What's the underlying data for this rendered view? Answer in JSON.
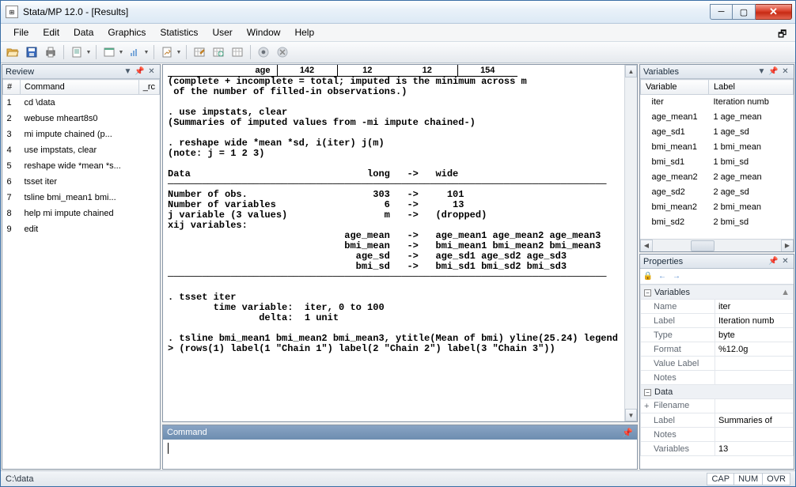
{
  "window": {
    "title": "Stata/MP 12.0 - [Results]"
  },
  "menu": [
    "File",
    "Edit",
    "Data",
    "Graphics",
    "Statistics",
    "User",
    "Window",
    "Help"
  ],
  "review": {
    "title": "Review",
    "cols": {
      "num": "#",
      "cmd": "Command",
      "rc": "_rc"
    },
    "rows": [
      {
        "n": "1",
        "cmd": "cd \\data"
      },
      {
        "n": "2",
        "cmd": "webuse mheart8s0"
      },
      {
        "n": "3",
        "cmd": "mi impute chained (p..."
      },
      {
        "n": "4",
        "cmd": "use impstats, clear"
      },
      {
        "n": "5",
        "cmd": "reshape wide *mean *s..."
      },
      {
        "n": "6",
        "cmd": "tsset iter"
      },
      {
        "n": "7",
        "cmd": "tsline bmi_mean1 bmi..."
      },
      {
        "n": "8",
        "cmd": "help mi impute chained"
      },
      {
        "n": "9",
        "cmd": "edit"
      }
    ]
  },
  "results": {
    "header": {
      "var": "age",
      "c1": "142",
      "c2": "12",
      "c3": "12",
      "c4": "154"
    },
    "body": "(complete + incomplete = total; imputed is the minimum across m\n of the number of filled-in observations.)\n\n. use impstats, clear\n(Summaries of imputed values from -mi impute chained-)\n\n. reshape wide *mean *sd, i(iter) j(m)\n(note: j = 1 2 3)\n\nData                               long   ->   wide\n─────────────────────────────────────────────────────────────────────────────\nNumber of obs.                      303   ->     101\nNumber of variables                   6   ->      13\nj variable (3 values)                 m   ->   (dropped)\nxij variables:\n                               age_mean   ->   age_mean1 age_mean2 age_mean3\n                               bmi_mean   ->   bmi_mean1 bmi_mean2 bmi_mean3\n                                 age_sd   ->   age_sd1 age_sd2 age_sd3\n                                 bmi_sd   ->   bmi_sd1 bmi_sd2 bmi_sd3\n─────────────────────────────────────────────────────────────────────────────\n\n. tsset iter\n        time variable:  iter, 0 to 100\n                delta:  1 unit\n\n. tsline bmi_mean1 bmi_mean2 bmi_mean3, ytitle(Mean of bmi) yline(25.24) legend\n> (rows(1) label(1 \"Chain 1\") label(2 \"Chain 2\") label(3 \"Chain 3\"))\n\n"
  },
  "command": {
    "title": "Command"
  },
  "variables": {
    "title": "Variables",
    "cols": {
      "var": "Variable",
      "label": "Label"
    },
    "rows": [
      {
        "v": "iter",
        "l": "Iteration numb"
      },
      {
        "v": "age_mean1",
        "l": "1 age_mean"
      },
      {
        "v": "age_sd1",
        "l": "1 age_sd"
      },
      {
        "v": "bmi_mean1",
        "l": "1 bmi_mean"
      },
      {
        "v": "bmi_sd1",
        "l": "1 bmi_sd"
      },
      {
        "v": "age_mean2",
        "l": "2 age_mean"
      },
      {
        "v": "age_sd2",
        "l": "2 age_sd"
      },
      {
        "v": "bmi_mean2",
        "l": "2 bmi_mean"
      },
      {
        "v": "bmi_sd2",
        "l": "2 bmi_sd"
      }
    ]
  },
  "properties": {
    "title": "Properties",
    "groups": {
      "variables": {
        "label": "Variables",
        "rows": [
          {
            "k": "Name",
            "v": "iter"
          },
          {
            "k": "Label",
            "v": "Iteration numb"
          },
          {
            "k": "Type",
            "v": "byte"
          },
          {
            "k": "Format",
            "v": "%12.0g"
          },
          {
            "k": "Value Label",
            "v": ""
          },
          {
            "k": "Notes",
            "v": ""
          }
        ]
      },
      "data": {
        "label": "Data",
        "rows": [
          {
            "k": "Filename",
            "v": ""
          },
          {
            "k": "Label",
            "v": "Summaries of"
          },
          {
            "k": "Notes",
            "v": ""
          },
          {
            "k": "Variables",
            "v": "13"
          }
        ]
      }
    }
  },
  "status": {
    "path": "C:\\data",
    "caps": "CAP",
    "num": "NUM",
    "ovr": "OVR"
  }
}
